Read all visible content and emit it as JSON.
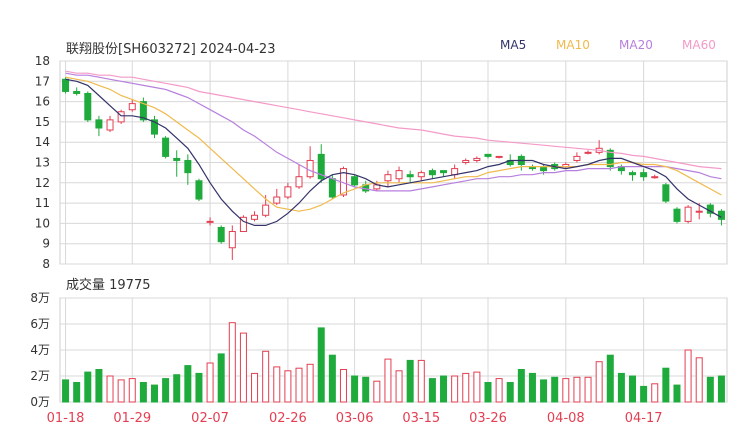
{
  "header": {
    "title": "联翔股份[SH603272] 2024-04-23",
    "legend": [
      {
        "label": "MA5",
        "color": "#33336a"
      },
      {
        "label": "MA10",
        "color": "#f0ba4d"
      },
      {
        "label": "MA20",
        "color": "#b77fdd"
      },
      {
        "label": "MA60",
        "color": "#f49ac8"
      }
    ]
  },
  "volume_label": "成交量 19775",
  "colors": {
    "up": "#e33f52",
    "down": "#1faa3c",
    "grid": "#d8d8d8"
  },
  "chart_data": [
    {
      "type": "candlestick",
      "ylim": [
        8,
        18
      ],
      "y_ticks": [
        "8",
        "9",
        "10",
        "11",
        "12",
        "13",
        "14",
        "15",
        "16",
        "17",
        "18"
      ],
      "x_ticks": [
        "01-18",
        "01-29",
        "02-07",
        "02-26",
        "03-06",
        "03-15",
        "03-26",
        "04-08",
        "04-17"
      ],
      "tick_index": [
        0,
        6,
        13,
        20,
        26,
        32,
        38,
        45,
        52
      ],
      "candles": [
        [
          17.1,
          16.5,
          17.2,
          16.4
        ],
        [
          16.5,
          16.4,
          16.7,
          16.3
        ],
        [
          16.4,
          15.1,
          16.5,
          15.0
        ],
        [
          15.1,
          14.7,
          15.3,
          14.3
        ],
        [
          14.6,
          15.1,
          15.3,
          14.5
        ],
        [
          15.0,
          15.5,
          15.6,
          14.9
        ],
        [
          15.6,
          15.9,
          16.1,
          15.5
        ],
        [
          16.0,
          15.1,
          16.2,
          15.0
        ],
        [
          15.1,
          14.4,
          15.3,
          14.2
        ],
        [
          14.2,
          13.3,
          14.3,
          13.2
        ],
        [
          13.2,
          13.1,
          13.6,
          12.3
        ],
        [
          13.1,
          12.5,
          13.4,
          11.9
        ],
        [
          12.1,
          11.2,
          12.2,
          11.1
        ],
        [
          10.1,
          10.1,
          10.3,
          9.9
        ],
        [
          9.8,
          9.1,
          9.9,
          9.0
        ],
        [
          8.8,
          9.6,
          9.9,
          8.2
        ],
        [
          9.6,
          10.3,
          10.4,
          9.6
        ],
        [
          10.2,
          10.4,
          10.6,
          10.1
        ],
        [
          10.4,
          10.9,
          11.4,
          10.3
        ],
        [
          11.0,
          11.3,
          11.7,
          10.9
        ],
        [
          11.3,
          11.8,
          12.0,
          11.2
        ],
        [
          11.8,
          12.3,
          12.9,
          11.7
        ],
        [
          12.3,
          13.1,
          13.8,
          12.2
        ],
        [
          13.4,
          12.2,
          13.9,
          12.0
        ],
        [
          12.2,
          11.3,
          12.4,
          11.2
        ],
        [
          11.4,
          12.7,
          12.8,
          11.3
        ],
        [
          12.3,
          11.9,
          12.4,
          11.8
        ],
        [
          11.9,
          11.6,
          12.1,
          11.5
        ],
        [
          11.7,
          11.9,
          12.1,
          11.6
        ],
        [
          12.1,
          12.4,
          12.6,
          11.8
        ],
        [
          12.2,
          12.6,
          12.8,
          12.0
        ],
        [
          12.4,
          12.3,
          12.6,
          12.0
        ],
        [
          12.3,
          12.5,
          12.6,
          12.1
        ],
        [
          12.6,
          12.4,
          12.7,
          12.2
        ],
        [
          12.6,
          12.5,
          12.6,
          12.3
        ],
        [
          12.4,
          12.7,
          12.9,
          12.2
        ],
        [
          13.0,
          13.1,
          13.2,
          12.9
        ],
        [
          13.1,
          13.2,
          13.3,
          13.0
        ],
        [
          13.4,
          13.3,
          13.4,
          13.2
        ],
        [
          13.3,
          13.3,
          13.3,
          13.2
        ],
        [
          13.1,
          12.9,
          13.4,
          12.8
        ],
        [
          13.3,
          12.9,
          13.4,
          12.6
        ],
        [
          12.8,
          12.7,
          12.9,
          12.6
        ],
        [
          12.8,
          12.6,
          12.9,
          12.4
        ],
        [
          12.9,
          12.7,
          13.0,
          12.6
        ],
        [
          12.8,
          12.9,
          13.0,
          12.7
        ],
        [
          13.1,
          13.3,
          13.5,
          13.0
        ],
        [
          13.5,
          13.5,
          13.6,
          13.4
        ],
        [
          13.5,
          13.7,
          14.1,
          13.4
        ],
        [
          13.6,
          12.8,
          13.7,
          12.6
        ],
        [
          12.8,
          12.6,
          12.9,
          12.4
        ],
        [
          12.5,
          12.4,
          12.6,
          12.1
        ],
        [
          12.5,
          12.3,
          12.7,
          12.1
        ],
        [
          12.3,
          12.3,
          12.4,
          12.2
        ],
        [
          11.9,
          11.1,
          12.0,
          11.0
        ],
        [
          10.7,
          10.1,
          10.8,
          10.0
        ],
        [
          10.1,
          10.8,
          10.9,
          10.0
        ],
        [
          10.6,
          10.6,
          11.0,
          10.2
        ],
        [
          10.9,
          10.5,
          11.0,
          10.3
        ],
        [
          10.6,
          10.2,
          10.7,
          9.9
        ]
      ],
      "ma5": [
        17.1,
        17.0,
        16.8,
        16.3,
        15.8,
        15.3,
        15.3,
        15.2,
        15.0,
        14.7,
        14.2,
        13.7,
        12.9,
        12.0,
        11.2,
        10.6,
        10.1,
        9.9,
        9.9,
        10.1,
        10.5,
        11.0,
        11.6,
        12.1,
        12.4,
        12.5,
        12.4,
        12.2,
        11.9,
        11.8,
        11.9,
        12.0,
        12.1,
        12.2,
        12.3,
        12.4,
        12.5,
        12.6,
        12.8,
        12.9,
        13.1,
        13.1,
        13.1,
        12.9,
        12.8,
        12.7,
        12.8,
        12.9,
        13.1,
        13.2,
        13.2,
        13.0,
        12.8,
        12.6,
        12.3,
        11.7,
        11.2,
        10.9,
        10.6,
        10.3
      ],
      "ma10": [
        17.2,
        17.1,
        17.0,
        16.8,
        16.6,
        16.3,
        16.1,
        15.9,
        15.7,
        15.4,
        15.0,
        14.6,
        14.2,
        13.7,
        13.2,
        12.7,
        12.2,
        11.7,
        11.2,
        10.8,
        10.7,
        10.6,
        10.7,
        10.9,
        11.2,
        11.5,
        11.7,
        11.9,
        12.0,
        12.0,
        12.0,
        12.0,
        12.0,
        12.0,
        12.1,
        12.2,
        12.3,
        12.3,
        12.5,
        12.6,
        12.7,
        12.8,
        12.8,
        12.8,
        12.8,
        12.8,
        12.8,
        12.9,
        12.9,
        12.9,
        13.0,
        13.0,
        12.9,
        12.9,
        12.8,
        12.6,
        12.3,
        12.0,
        11.7,
        11.4
      ],
      "ma20": [
        17.4,
        17.3,
        17.3,
        17.2,
        17.1,
        17.0,
        16.9,
        16.8,
        16.7,
        16.6,
        16.4,
        16.2,
        15.9,
        15.6,
        15.3,
        15.0,
        14.6,
        14.3,
        13.9,
        13.5,
        13.2,
        12.9,
        12.6,
        12.4,
        12.2,
        12.0,
        11.8,
        11.7,
        11.6,
        11.6,
        11.6,
        11.6,
        11.7,
        11.8,
        11.9,
        12.0,
        12.1,
        12.2,
        12.2,
        12.3,
        12.3,
        12.4,
        12.4,
        12.5,
        12.5,
        12.6,
        12.6,
        12.7,
        12.7,
        12.7,
        12.8,
        12.8,
        12.8,
        12.8,
        12.8,
        12.7,
        12.6,
        12.5,
        12.3,
        12.2
      ],
      "ma60": [
        17.5,
        17.4,
        17.4,
        17.3,
        17.3,
        17.2,
        17.2,
        17.1,
        17.0,
        16.9,
        16.8,
        16.7,
        16.5,
        16.4,
        16.3,
        16.2,
        16.1,
        16.0,
        15.9,
        15.8,
        15.7,
        15.6,
        15.5,
        15.4,
        15.3,
        15.2,
        15.1,
        15.0,
        14.9,
        14.8,
        14.7,
        14.65,
        14.6,
        14.5,
        14.4,
        14.3,
        14.25,
        14.2,
        14.1,
        14.05,
        14.0,
        13.95,
        13.9,
        13.85,
        13.8,
        13.75,
        13.7,
        13.65,
        13.6,
        13.5,
        13.45,
        13.35,
        13.3,
        13.2,
        13.1,
        13.0,
        12.9,
        12.8,
        12.75,
        12.7
      ]
    },
    {
      "type": "bar",
      "ylim": [
        0,
        8
      ],
      "y_ticks": [
        "0万",
        "2万",
        "4万",
        "6万",
        "8万"
      ],
      "unit": "万",
      "volumes": [
        1.7,
        1.5,
        2.3,
        2.5,
        2.0,
        1.7,
        1.8,
        1.5,
        1.3,
        1.8,
        2.1,
        2.8,
        2.2,
        3.0,
        3.7,
        6.1,
        5.3,
        2.2,
        3.9,
        2.7,
        2.4,
        2.6,
        2.9,
        5.7,
        3.6,
        2.5,
        2.0,
        1.9,
        1.6,
        3.3,
        2.4,
        3.2,
        3.2,
        1.8,
        2.0,
        2.0,
        2.2,
        2.3,
        1.5,
        1.8,
        1.5,
        2.5,
        2.2,
        1.7,
        1.9,
        1.8,
        1.9,
        1.9,
        3.1,
        3.6,
        2.2,
        2.0,
        1.2,
        1.4,
        2.6,
        1.3,
        4.0,
        3.4,
        1.9,
        2.0
      ]
    }
  ]
}
